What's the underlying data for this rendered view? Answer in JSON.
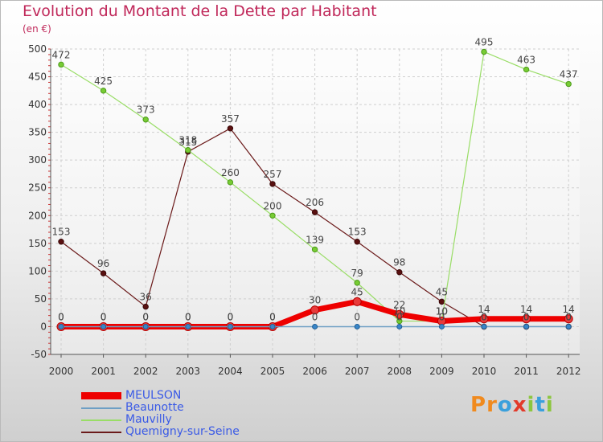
{
  "chart_data": {
    "type": "line",
    "title": "Evolution du Montant de la Dette par Habitant",
    "subtitle": "(en €)",
    "categories": [
      "2000",
      "2001",
      "2002",
      "2003",
      "2004",
      "2005",
      "2006",
      "2007",
      "2008",
      "2009",
      "2010",
      "2011",
      "2012"
    ],
    "ylim": [
      -50,
      500
    ],
    "yticks": [
      -50,
      0,
      50,
      100,
      150,
      200,
      250,
      300,
      350,
      400,
      450,
      500
    ],
    "grid": true,
    "legend_position": "bottom-left",
    "series": [
      {
        "name": "MEULSON",
        "color": "#ee0000",
        "values": [
          0,
          0,
          0,
          0,
          0,
          0,
          30,
          45,
          22,
          10,
          14,
          14,
          14
        ],
        "labels": [
          "0",
          "0",
          "0",
          "0",
          "0",
          "0",
          "30",
          "45",
          "22",
          "10",
          "14",
          "14",
          "14"
        ]
      },
      {
        "name": "Beaunotte",
        "color": "#6e9fc5",
        "values": [
          0,
          0,
          0,
          0,
          0,
          0,
          0,
          0,
          0,
          0,
          0,
          0,
          0
        ],
        "labels": [
          "0",
          "0",
          "0",
          "0",
          "0",
          "0",
          "0",
          "0",
          "0",
          "0",
          "0",
          "0",
          "0"
        ]
      },
      {
        "name": "Mauvilly",
        "color": "#99dd66",
        "values": [
          472,
          425,
          373,
          318,
          260,
          200,
          139,
          79,
          10,
          10,
          495,
          463,
          437
        ],
        "labels": [
          "472",
          "425",
          "373",
          "318",
          "260",
          "200",
          "139",
          "79",
          "10",
          "10",
          "495",
          "463",
          "437"
        ]
      },
      {
        "name": "Quemigny-sur-Seine",
        "color": "#6b1a1a",
        "values": [
          153,
          96,
          36,
          315,
          357,
          257,
          206,
          153,
          98,
          45,
          0,
          0,
          0
        ],
        "labels": [
          "153",
          "96",
          "36",
          "315",
          "357",
          "257",
          "206",
          "153",
          "98",
          "45",
          "0",
          "0",
          "0"
        ]
      }
    ]
  },
  "logo": {
    "text": "Proxiti",
    "letters": [
      {
        "ch": "P",
        "color": "#f08a1e"
      },
      {
        "ch": "r",
        "color": "#f08a1e"
      },
      {
        "ch": "o",
        "color": "#3aa0dc"
      },
      {
        "ch": "x",
        "color": "#e23a2a"
      },
      {
        "ch": "i",
        "color": "#8cc63f"
      },
      {
        "ch": "t",
        "color": "#3aa0dc"
      },
      {
        "ch": "i",
        "color": "#8cc63f"
      }
    ]
  }
}
